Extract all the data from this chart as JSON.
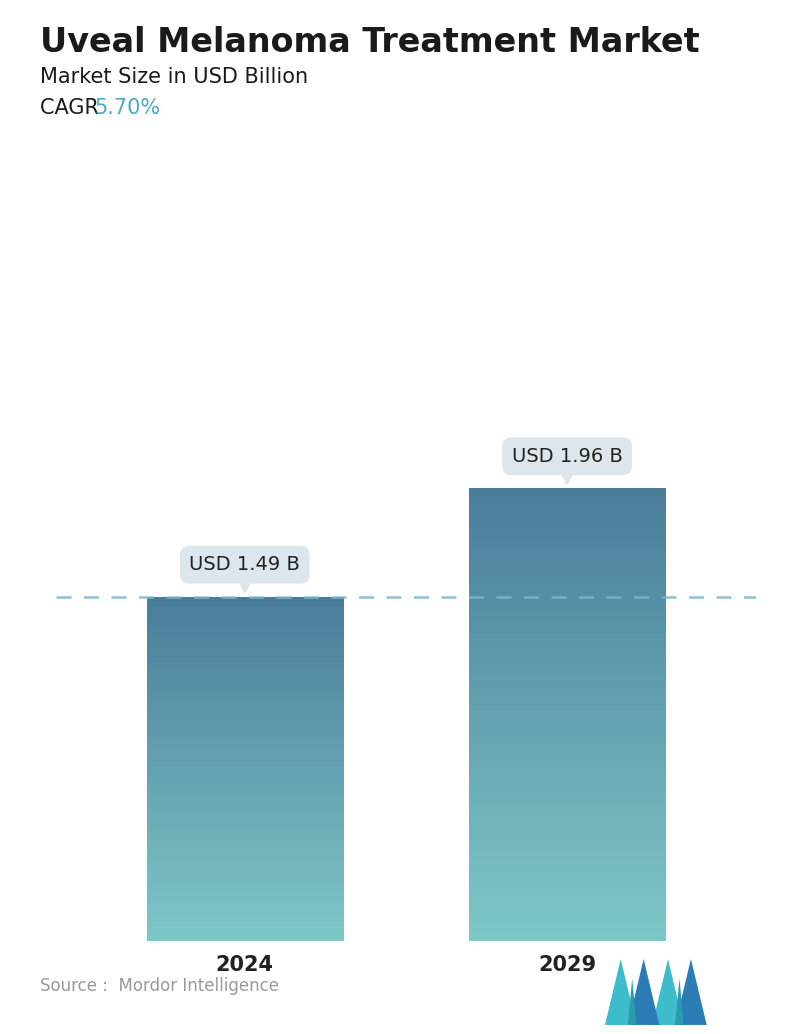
{
  "title": "Uveal Melanoma Treatment Market",
  "subtitle": "Market Size in USD Billion",
  "cagr_label": "CAGR ",
  "cagr_value": "5.70%",
  "cagr_color": "#4BAAC8",
  "categories": [
    "2024",
    "2029"
  ],
  "values": [
    1.49,
    1.96
  ],
  "bar_labels": [
    "USD 1.49 B",
    "USD 1.96 B"
  ],
  "bar_color_top": "#4A7D9A",
  "bar_color_bottom": "#7EC8C8",
  "dashed_line_color": "#7AB8CC",
  "dashed_line_value": 1.49,
  "annotation_bg_color": "#DDE6EC",
  "annotation_text_color": "#222222",
  "source_text": "Source :  Mordor Intelligence",
  "source_color": "#999999",
  "background_color": "#FFFFFF",
  "ylim": [
    0,
    2.6
  ],
  "positions": [
    0.27,
    0.73
  ],
  "bar_width": 0.28,
  "title_fontsize": 24,
  "subtitle_fontsize": 15,
  "cagr_fontsize": 15,
  "annotation_fontsize": 14,
  "tick_fontsize": 15,
  "source_fontsize": 12
}
